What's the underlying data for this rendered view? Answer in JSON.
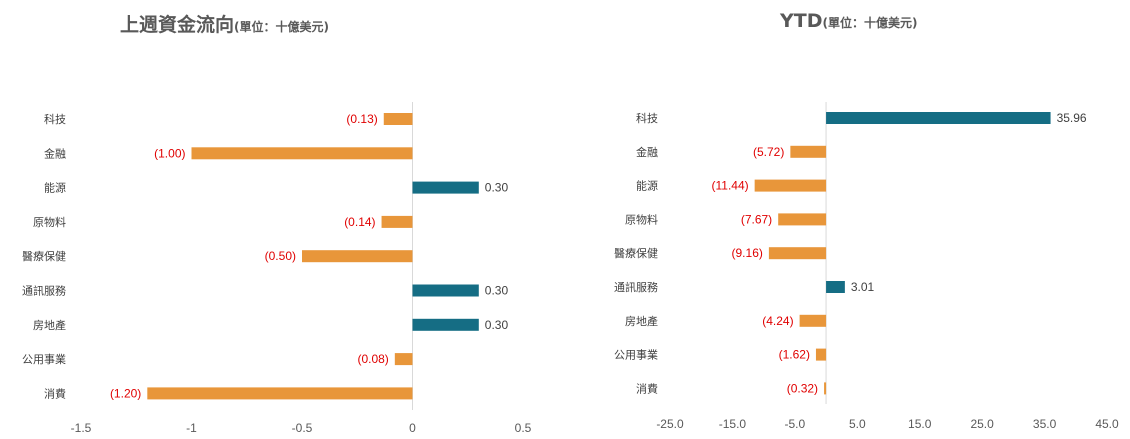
{
  "chart_data": [
    {
      "type": "bar",
      "orientation": "horizontal",
      "title": "上週資金流向",
      "subtitle": "(單位：十億美元)",
      "categories": [
        "科技",
        "金融",
        "能源",
        "原物料",
        "醫療保健",
        "通訊服務",
        "房地產",
        "公用事業",
        "消費"
      ],
      "values": [
        -0.13,
        -1.0,
        0.3,
        -0.14,
        -0.5,
        0.3,
        0.3,
        -0.08,
        -1.2
      ],
      "data_labels": [
        "(0.13)",
        "(1.00)",
        "0.30",
        "(0.14)",
        "(0.50)",
        "0.30",
        "0.30",
        "(0.08)",
        "(1.20)"
      ],
      "xlim": [
        -1.5,
        0.5
      ],
      "xticks": [
        -1.5,
        -1,
        -0.5,
        0,
        0.5
      ],
      "xtick_labels": [
        "-1.5",
        "-1",
        "-0.5",
        "0",
        "0.5"
      ],
      "grid": false,
      "legend": "none",
      "colors": {
        "positive": "#156D84",
        "negative": "#E8963A",
        "negative_label": "#E00000",
        "positive_label": "#404040"
      }
    },
    {
      "type": "bar",
      "orientation": "horizontal",
      "title": "YTD",
      "subtitle": "(單位：十億美元)",
      "categories": [
        "科技",
        "金融",
        "能源",
        "原物料",
        "醫療保健",
        "通訊服務",
        "房地產",
        "公用事業",
        "消費"
      ],
      "values": [
        35.96,
        -5.72,
        -11.44,
        -7.67,
        -9.16,
        3.01,
        -4.24,
        -1.62,
        -0.32
      ],
      "data_labels": [
        "35.96",
        "(5.72)",
        "(11.44)",
        "(7.67)",
        "(9.16)",
        "3.01",
        "(4.24)",
        "(1.62)",
        "(0.32)"
      ],
      "xlim": [
        -25,
        45
      ],
      "xticks": [
        -25,
        -15,
        -5,
        5,
        15,
        25,
        35,
        45
      ],
      "xtick_labels": [
        "-25.0",
        "-15.0",
        "-5.0",
        "5.0",
        "15.0",
        "25.0",
        "35.0",
        "45.0"
      ],
      "grid": false,
      "legend": "none",
      "colors": {
        "positive": "#156D84",
        "negative": "#E8963A",
        "negative_label": "#E00000",
        "positive_label": "#404040"
      }
    }
  ]
}
